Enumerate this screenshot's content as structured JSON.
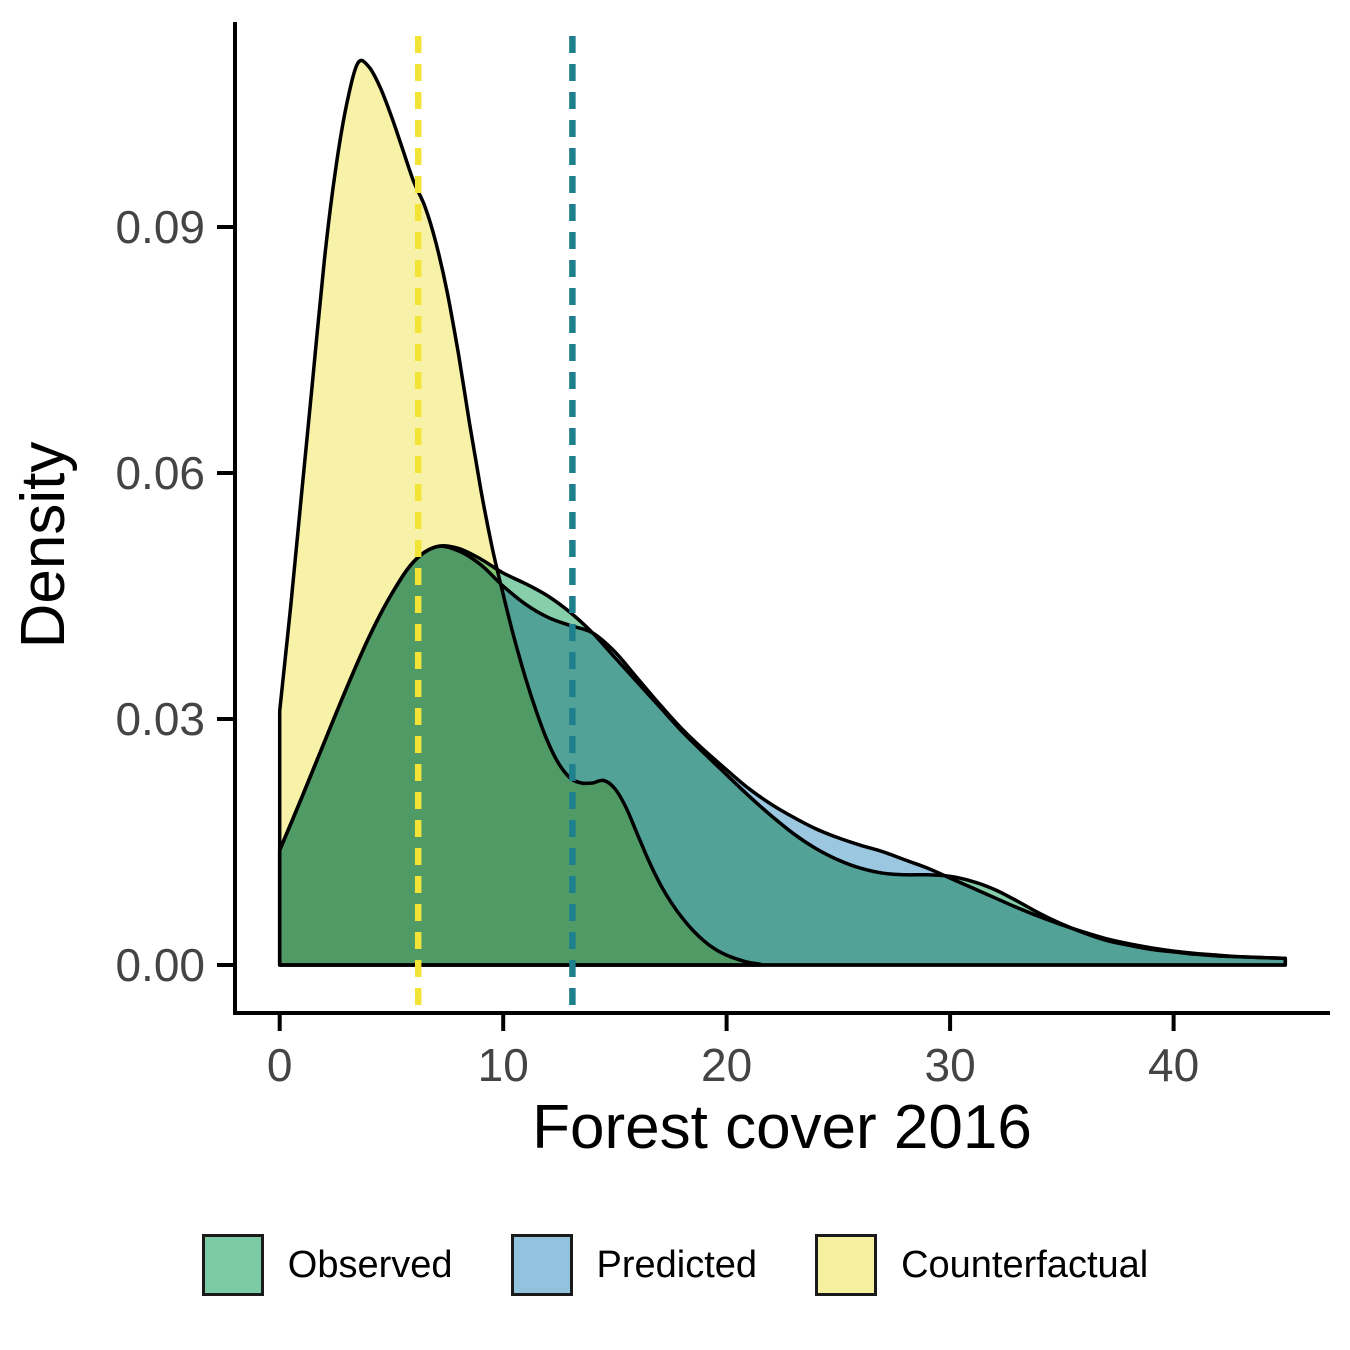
{
  "chart_data": {
    "type": "area",
    "subtype": "density",
    "title": "",
    "xlabel": "Forest cover 2016",
    "ylabel": "Density",
    "xlim": [
      -2,
      47
    ],
    "ylim": [
      0,
      0.115
    ],
    "x_ticks": [
      0,
      10,
      20,
      30,
      40
    ],
    "x_tick_labels": [
      "0",
      "10",
      "20",
      "30",
      "40"
    ],
    "y_ticks": [
      0.0,
      0.03,
      0.06,
      0.09
    ],
    "y_tick_labels": [
      "0.00",
      "0.03",
      "0.06",
      "0.09"
    ],
    "grid": false,
    "legend_position": "bottom",
    "panel_background": "#FFFFFF",
    "outline_color": "#000000",
    "series": [
      {
        "name": "Observed",
        "color": "#7DCBA4",
        "x": [
          0,
          1,
          2,
          3,
          4,
          5,
          6,
          7,
          8,
          9,
          10,
          11,
          12,
          13,
          14,
          15,
          16,
          17,
          18,
          19,
          20,
          21,
          22,
          23,
          24,
          25,
          26,
          27,
          28,
          29,
          30,
          31,
          32,
          33,
          34,
          35,
          36,
          37,
          38,
          39,
          40,
          41,
          42,
          43,
          44,
          45
        ],
        "y": [
          0.014,
          0.0205,
          0.0272,
          0.0338,
          0.04,
          0.0452,
          0.0492,
          0.051,
          0.0508,
          0.0495,
          0.0478,
          0.0465,
          0.045,
          0.043,
          0.0405,
          0.0375,
          0.0345,
          0.0315,
          0.0285,
          0.0258,
          0.0232,
          0.0206,
          0.0182,
          0.016,
          0.0142,
          0.0128,
          0.0118,
          0.0112,
          0.011,
          0.011,
          0.0108,
          0.0102,
          0.0092,
          0.0078,
          0.0063,
          0.005,
          0.0039,
          0.003,
          0.0024,
          0.0019,
          0.0016,
          0.0013,
          0.0011,
          0.001,
          0.0009,
          0.0008
        ]
      },
      {
        "name": "Predicted",
        "color": "#92C2DE",
        "x": [
          0,
          1,
          2,
          3,
          4,
          5,
          6,
          7,
          8,
          9,
          10,
          11,
          12,
          13,
          14,
          15,
          16,
          17,
          18,
          19,
          20,
          21,
          22,
          23,
          24,
          25,
          26,
          27,
          28,
          29,
          30,
          31,
          32,
          33,
          34,
          35,
          36,
          37,
          38,
          39,
          40,
          41,
          42,
          43,
          44,
          45
        ],
        "y": [
          0.014,
          0.0205,
          0.0272,
          0.0338,
          0.04,
          0.0452,
          0.0492,
          0.051,
          0.0505,
          0.0488,
          0.0462,
          0.044,
          0.0424,
          0.0414,
          0.0405,
          0.0382,
          0.035,
          0.0318,
          0.0288,
          0.0262,
          0.0238,
          0.0215,
          0.0196,
          0.018,
          0.0166,
          0.0155,
          0.0146,
          0.0138,
          0.0128,
          0.0118,
          0.0106,
          0.0094,
          0.0082,
          0.007,
          0.0059,
          0.0049,
          0.004,
          0.0032,
          0.0026,
          0.0021,
          0.0017,
          0.0014,
          0.0012,
          0.001,
          0.0009,
          0.0008
        ]
      },
      {
        "name": "Counterfactual",
        "color": "#F6F1A1",
        "x": [
          0,
          0.5,
          1,
          1.5,
          2,
          2.5,
          3,
          3.5,
          4,
          4.5,
          5,
          5.5,
          6,
          6.5,
          7,
          7.5,
          8,
          8.5,
          9,
          9.5,
          10,
          10.5,
          11,
          11.5,
          12,
          12.5,
          13,
          13.5,
          14,
          14.5,
          15,
          15.5,
          16,
          16.5,
          17,
          17.5,
          18,
          18.5,
          19,
          19.5,
          20,
          20.5,
          21,
          21.5
        ],
        "y": [
          0.031,
          0.044,
          0.058,
          0.072,
          0.086,
          0.097,
          0.105,
          0.11,
          0.1095,
          0.107,
          0.1035,
          0.0995,
          0.0955,
          0.0925,
          0.088,
          0.082,
          0.0745,
          0.066,
          0.058,
          0.051,
          0.0452,
          0.0398,
          0.035,
          0.0308,
          0.0272,
          0.0245,
          0.0228,
          0.0222,
          0.0222,
          0.0225,
          0.0215,
          0.0192,
          0.016,
          0.0128,
          0.01,
          0.0077,
          0.0058,
          0.0042,
          0.0029,
          0.0019,
          0.0012,
          0.0007,
          0.0003,
          0.0001
        ]
      }
    ],
    "vlines": [
      {
        "x": 6.2,
        "color": "#F2E337",
        "style": "dashed"
      },
      {
        "x": 13.1,
        "color": "#1E808C",
        "style": "dashed"
      }
    ]
  },
  "legend": {
    "items": [
      {
        "label": "Observed",
        "color": "#7DCBA4"
      },
      {
        "label": "Predicted",
        "color": "#92C2DE"
      },
      {
        "label": "Counterfactual",
        "color": "#F6F1A1"
      }
    ]
  }
}
